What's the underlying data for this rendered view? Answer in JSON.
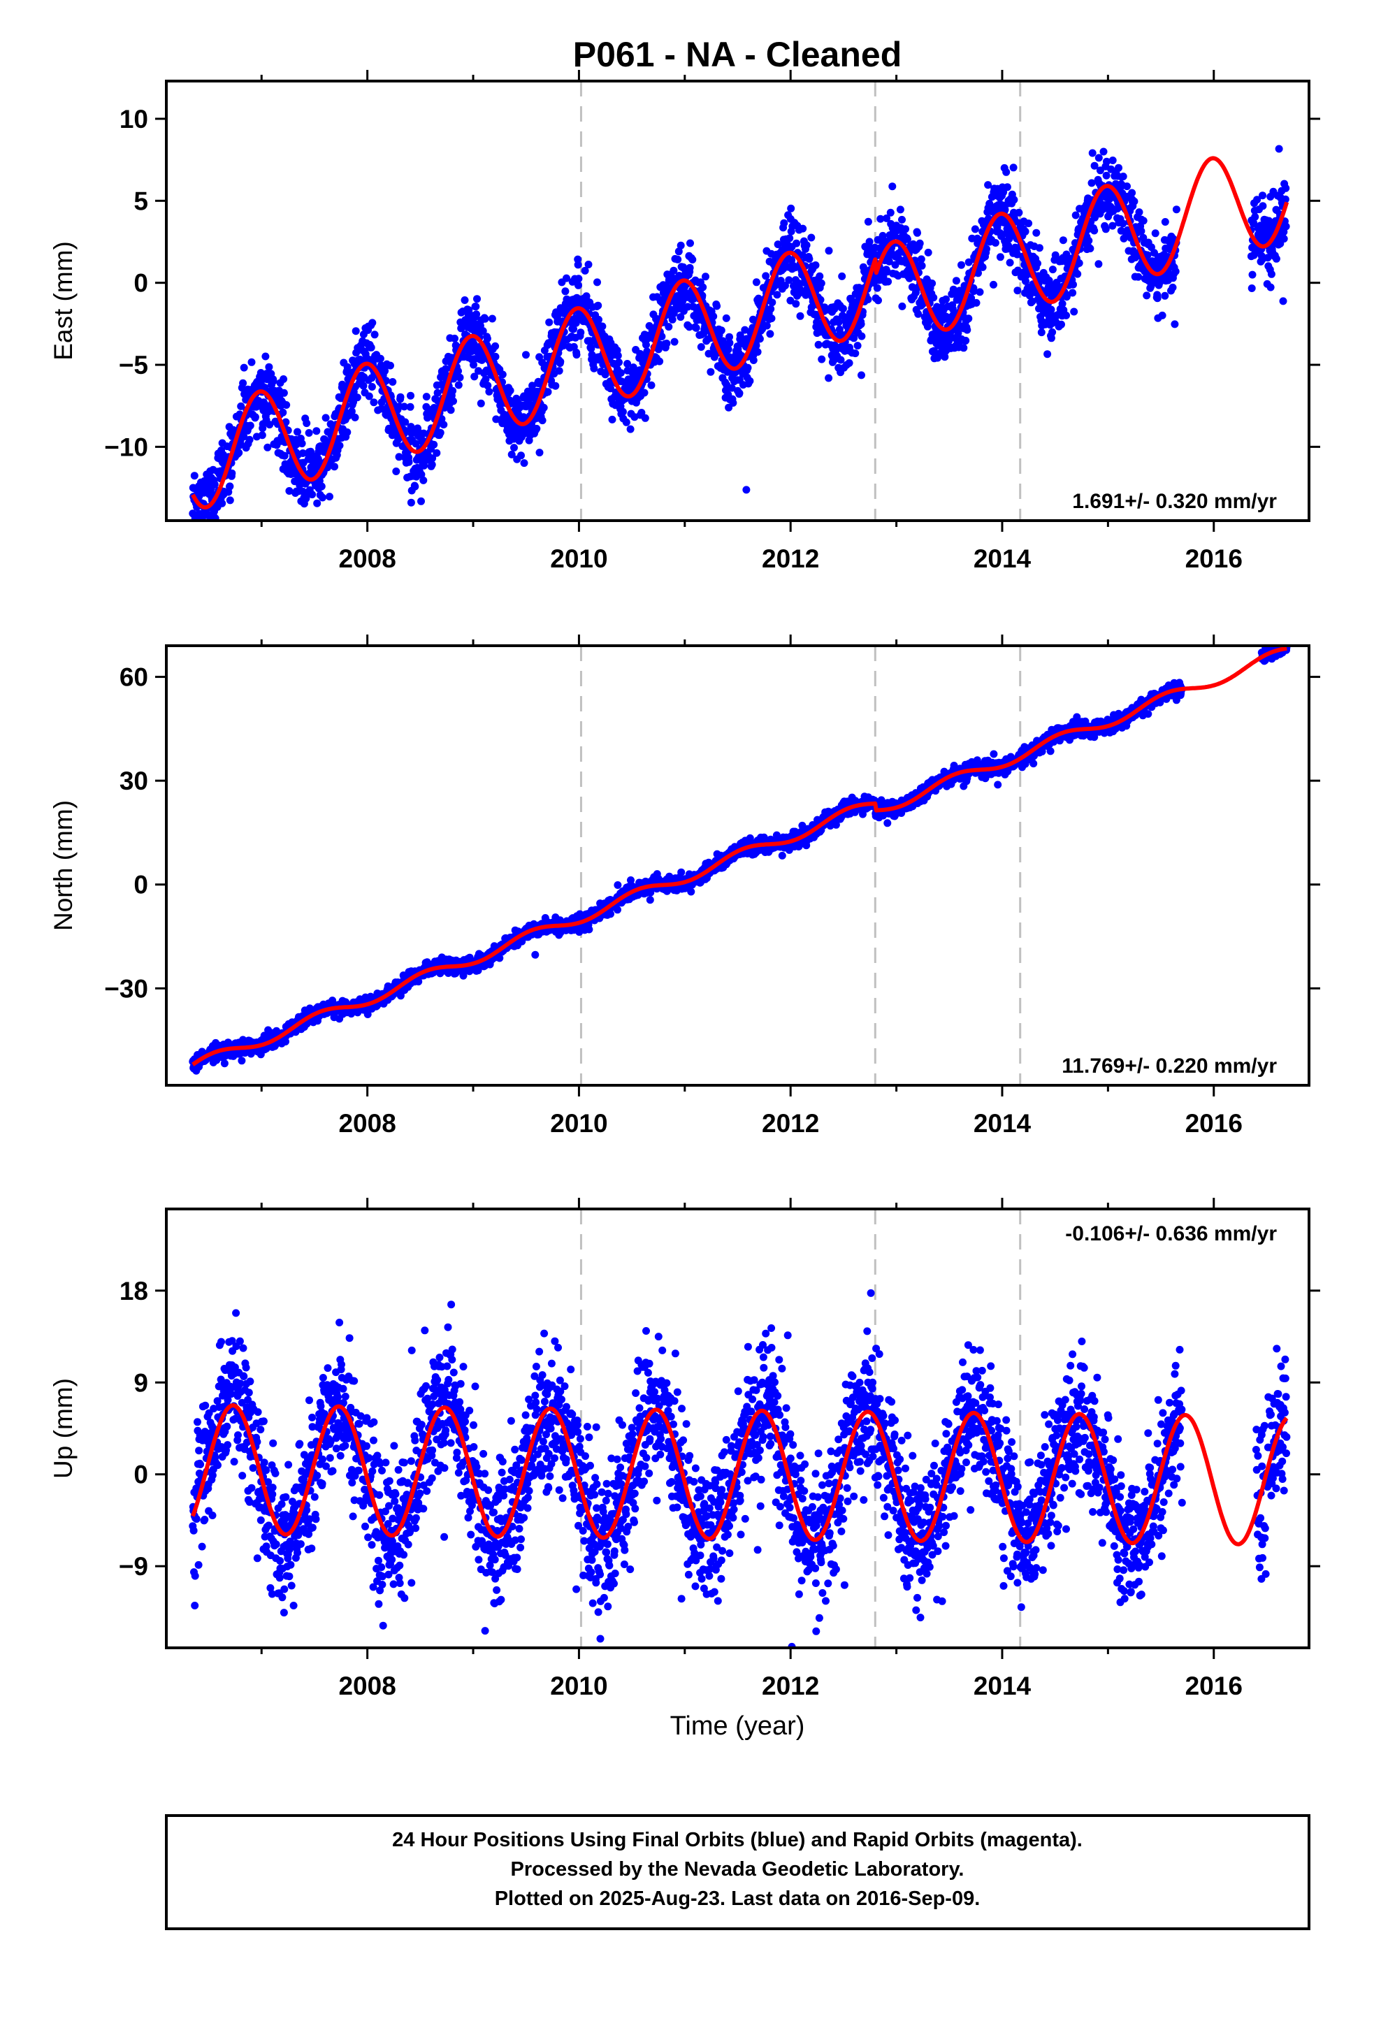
{
  "title": "P061  - NA - Cleaned",
  "xlabel": "Time (year)",
  "footer": [
    "24 Hour Positions Using Final Orbits (blue) and Rapid Orbits (magenta).",
    "Processed by the Nevada Geodetic Laboratory.",
    "Plotted on 2025-Aug-23. Last data on 2016-Sep-09."
  ],
  "colors": {
    "data": "#0000ff",
    "model": "#ff0000",
    "event_line": "#c0c0c0"
  },
  "chart_data": [
    {
      "type": "scatter",
      "component": "east",
      "ylabel": "East (mm)",
      "rate_label": "1.691+/- 0.320 mm/yr",
      "xlim": [
        2006.1,
        2016.9
      ],
      "ylim": [
        -14.5,
        12.3
      ],
      "xticks": [
        2008,
        2010,
        2012,
        2014,
        2016
      ],
      "yticks": [
        10,
        5,
        0,
        -5,
        -10
      ],
      "ytick_labels": [
        "10",
        "5",
        "0",
        "−5",
        "−10"
      ],
      "event_lines": [
        2010.02,
        2012.8,
        2014.17
      ],
      "data_span": [
        2006.35,
        2016.69
      ],
      "data_gap": [
        2015.65,
        2016.35
      ],
      "series_model": {
        "name": "model",
        "offset": -10.8,
        "rate": 1.691,
        "t0": 2006.35,
        "seasonal": [
          {
            "amp": 3.1,
            "peak": 2006.98
          }
        ],
        "steps": [
          {
            "t": 2012.8,
            "dy": -1.0
          }
        ]
      },
      "scatter_sd": 1.1
    },
    {
      "type": "scatter",
      "component": "north",
      "ylabel": "North (mm)",
      "rate_label": "11.769+/- 0.220 mm/yr",
      "xlim": [
        2006.1,
        2016.9
      ],
      "ylim": [
        -58,
        69
      ],
      "xticks": [
        2008,
        2010,
        2012,
        2014,
        2016
      ],
      "yticks": [
        60,
        30,
        0,
        -30
      ],
      "ytick_labels": [
        "60",
        "30",
        "0",
        "−30"
      ],
      "event_lines": [
        2010.02,
        2012.8,
        2014.17
      ],
      "data_span": [
        2006.35,
        2016.69
      ],
      "data_gap": [
        2015.7,
        2016.45
      ],
      "series_model": {
        "name": "model",
        "offset": -52.5,
        "rate": 11.769,
        "t0": 2006.35,
        "seasonal": [
          {
            "amp": 1.6,
            "peak": 2007.55
          }
        ],
        "steps": [
          {
            "t": 2012.8,
            "dy": -2.0
          }
        ]
      },
      "scatter_sd": 1.0
    },
    {
      "type": "scatter",
      "component": "up",
      "ylabel": "Up (mm)",
      "rate_label": "-0.106+/- 0.636 mm/yr",
      "xlim": [
        2006.1,
        2016.9
      ],
      "ylim": [
        -17,
        26
      ],
      "xticks": [
        2008,
        2010,
        2012,
        2014,
        2016
      ],
      "yticks": [
        18,
        9,
        0,
        -9
      ],
      "ytick_labels": [
        "18",
        "9",
        "0",
        "−9"
      ],
      "event_lines": [
        2010.02,
        2012.8,
        2014.17
      ],
      "data_span": [
        2006.35,
        2016.69
      ],
      "data_gap": [
        2015.7,
        2016.4
      ],
      "series_model": {
        "name": "model",
        "offset": 0.5,
        "rate": -0.106,
        "t0": 2006.35,
        "seasonal": [
          {
            "amp": 6.3,
            "peak": 2006.73
          }
        ],
        "steps": []
      },
      "scatter_sd": 3.2
    }
  ]
}
